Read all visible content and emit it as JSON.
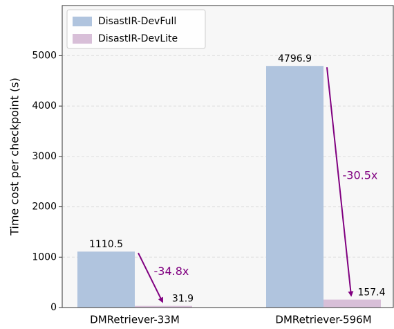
{
  "chart_data": {
    "type": "bar",
    "categories": [
      "DMRetriever-33M",
      "DMRetriever-596M"
    ],
    "series": [
      {
        "name": "DisastIR-DevFull",
        "color": "#b0c4de",
        "values": [
          1110.5,
          4796.9
        ]
      },
      {
        "name": "DisastIR-DevLite",
        "color": "#d8bfd8",
        "values": [
          31.9,
          157.4
        ]
      }
    ],
    "annotations": [
      "-34.8x",
      "-30.5x"
    ],
    "annotation_color": "#800080",
    "ylabel": "Time cost per checkpoint (s)",
    "ylim": [
      0,
      5996
    ],
    "yticks": [
      0,
      1000,
      2000,
      3000,
      4000,
      5000
    ],
    "grid": true,
    "legend": "upper left"
  }
}
